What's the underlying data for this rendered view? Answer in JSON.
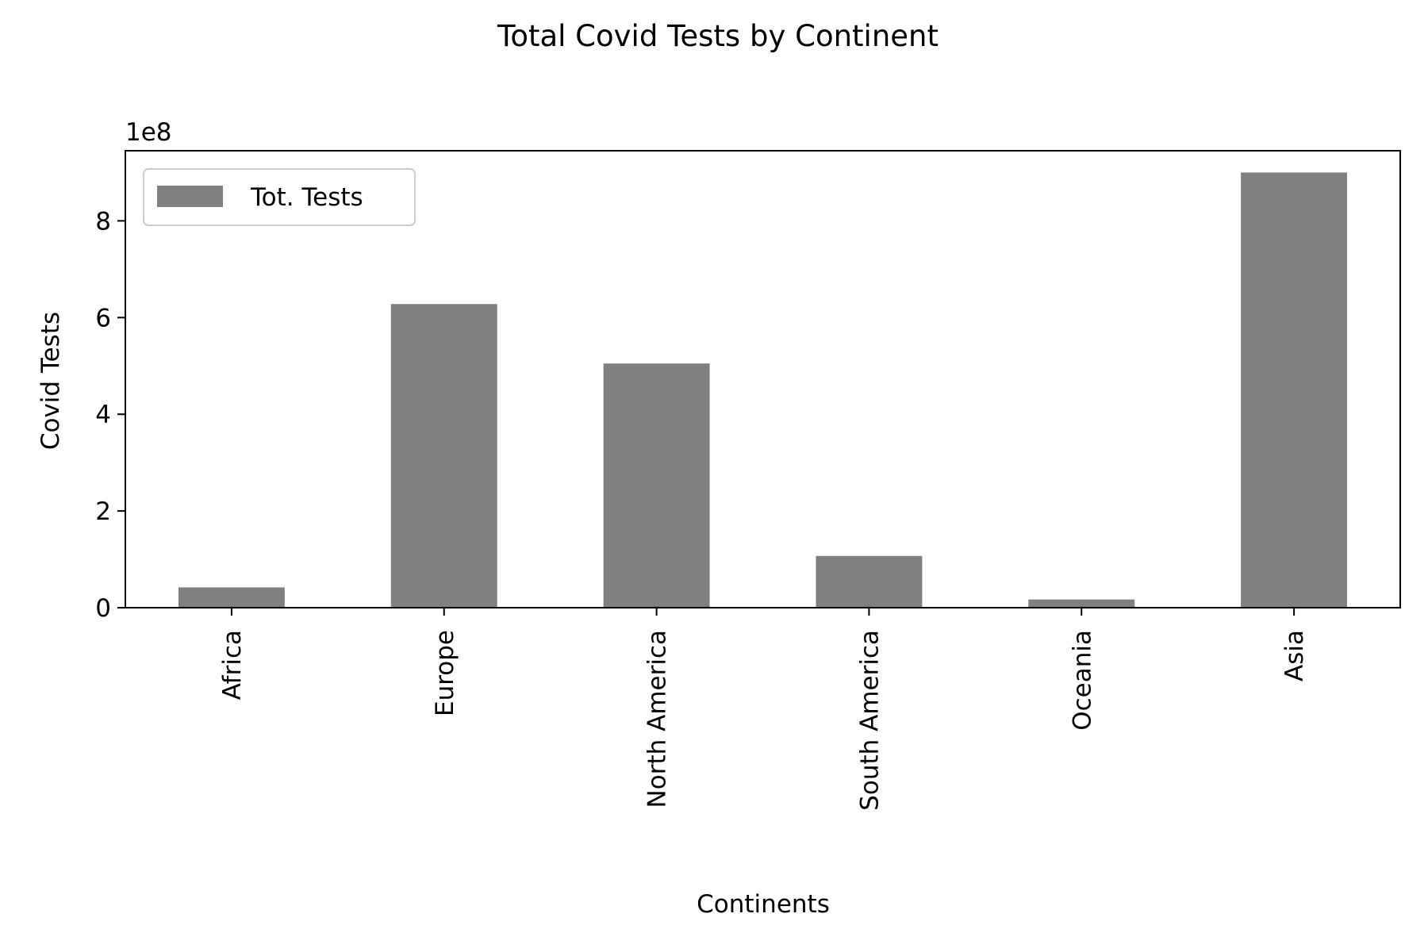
{
  "chart_data": {
    "type": "bar",
    "title": "Total Covid Tests by Continent",
    "xlabel": "Continents",
    "ylabel": "Covid Tests",
    "offset_label": "1e8",
    "categories": [
      "Africa",
      "Europe",
      "North America",
      "South America",
      "Oceania",
      "Asia"
    ],
    "series": [
      {
        "name": "Tot. Tests",
        "values": [
          42000000,
          628000000,
          505000000,
          107000000,
          17000000,
          900000000
        ]
      }
    ],
    "ylim": [
      0,
      945000000
    ],
    "yticks": [
      0,
      200000000,
      400000000,
      600000000,
      800000000
    ],
    "ytick_labels": [
      "0",
      "2",
      "4",
      "6",
      "8"
    ],
    "legend_position": "top-left",
    "grid": false,
    "colors": {
      "bar": "#808080",
      "axes": "#000000",
      "legend_border": "#cccccc"
    }
  }
}
